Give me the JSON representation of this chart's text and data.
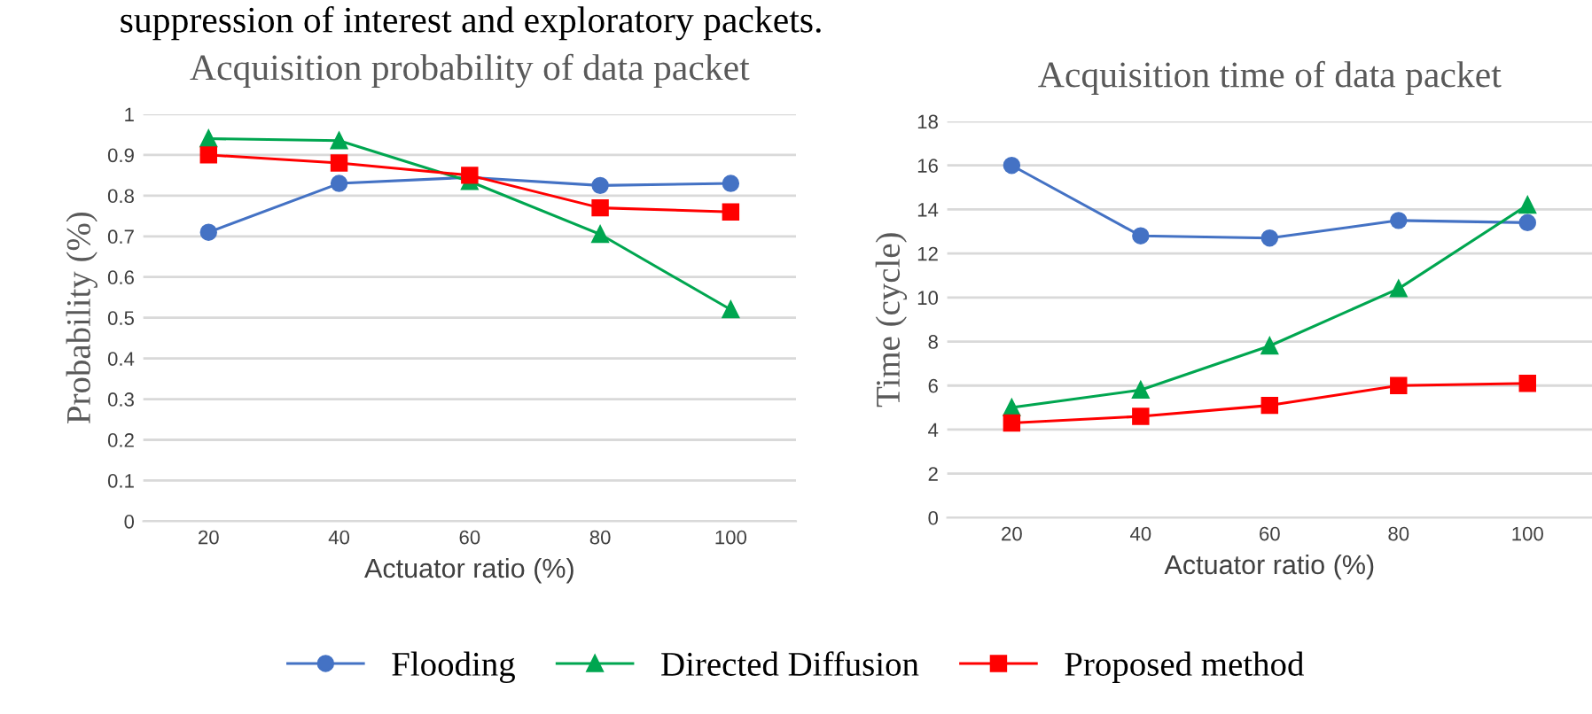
{
  "chart_data": [
    {
      "type": "line",
      "title": "Acquisition probability of data packet",
      "xlabel": "Actuator ratio (%)",
      "ylabel": "Probability (%)",
      "annotations": [
        "suppression of interest and exploratory packets."
      ],
      "categories": [
        "20",
        "40",
        "60",
        "80",
        "100"
      ],
      "series": [
        {
          "color": "#4472c4",
          "marker": "circle",
          "values": [
            0.71,
            0.83,
            0.845,
            0.825,
            0.83
          ]
        },
        {
          "color": "#00a650",
          "marker": "triangle",
          "values": [
            0.94,
            0.935,
            0.835,
            0.705,
            0.52
          ]
        },
        {
          "color": "#ff0000",
          "marker": "square",
          "values": [
            0.9,
            0.88,
            0.85,
            0.77,
            0.76
          ]
        }
      ],
      "ylim": [
        0,
        1
      ],
      "yticks": [
        0,
        0.1,
        0.2,
        0.3,
        0.4,
        0.5,
        0.6,
        0.7,
        0.8,
        0.9,
        1
      ],
      "grid": "y",
      "line_style": "solid"
    },
    {
      "type": "line",
      "title": "Acquisition time of data packet",
      "xlabel": "Actuator ratio (%)",
      "ylabel": "Time (cycle)",
      "categories": [
        "20",
        "40",
        "60",
        "80",
        "100"
      ],
      "series": [
        {
          "name": "Flooding",
          "color": "#4472c4",
          "marker": "circle",
          "values": [
            16.0,
            12.8,
            12.7,
            13.5,
            13.4
          ]
        },
        {
          "name": "Directed Diffusion",
          "color": "#00a650",
          "marker": "triangle",
          "values": [
            5.0,
            5.8,
            7.8,
            10.4,
            14.2
          ]
        },
        {
          "name": "Proposed method",
          "color": "#ff0000",
          "marker": "square",
          "values": [
            4.3,
            4.6,
            5.1,
            6.0,
            6.1
          ]
        }
      ],
      "ylim": [
        0,
        18
      ],
      "yticks": [
        0,
        2,
        4,
        6,
        8,
        10,
        12,
        14,
        16,
        18
      ],
      "grid": "y",
      "legend": "bottom",
      "line_style": "solid"
    }
  ]
}
